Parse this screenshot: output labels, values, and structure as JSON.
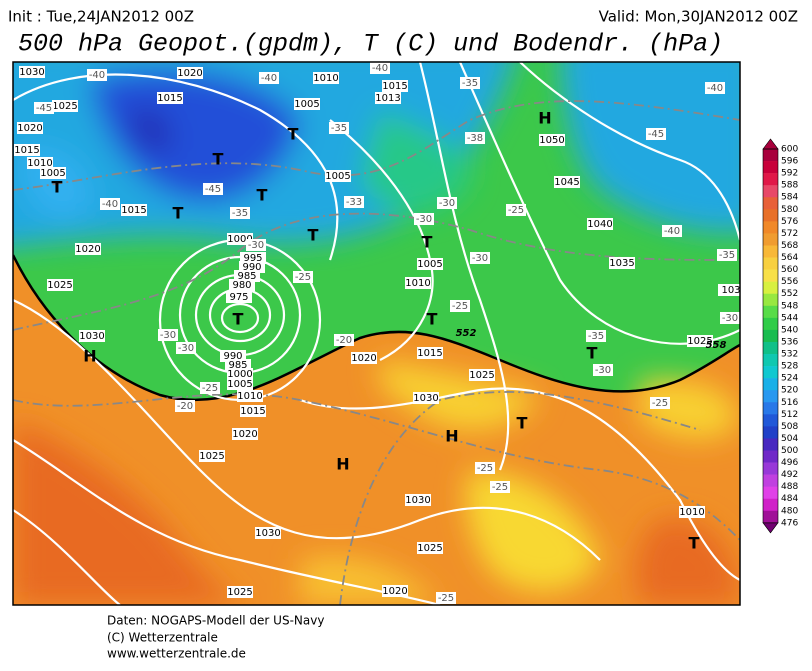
{
  "header": {
    "init": "Init : Tue,24JAN2012 00Z",
    "valid": "Valid: Mon,30JAN2012 00Z",
    "title": "500 hPa Geopot.(gpdm), T (C) und Bodendr. (hPa)"
  },
  "map": {
    "pressure_labels": [
      1030,
      1025,
      1020,
      1015,
      1010,
      1005,
      1015,
      1020,
      1025,
      1030,
      1020,
      1015,
      1010,
      1005,
      1015,
      1013,
      1050,
      1045,
      1040,
      1035,
      1005,
      1000,
      995,
      990,
      985,
      980,
      975,
      1005,
      1010,
      990,
      985,
      1000,
      1005,
      1010,
      1015,
      1020,
      1025,
      1030,
      1030,
      1025,
      1020,
      1025,
      1020,
      1015,
      1025,
      1030,
      1025,
      1010,
      103
    ],
    "temperature_labels": [
      -40,
      -40,
      -40,
      -35,
      -40,
      -45,
      -35,
      -38,
      -45,
      -40,
      -45,
      -35,
      -30,
      -33,
      -30,
      -30,
      -25,
      -40,
      -25,
      -30,
      -25,
      -20,
      -30,
      -30,
      -35,
      -30,
      -30,
      -25,
      -20,
      -25,
      -25,
      -25,
      -25,
      -35
    ],
    "highs": [
      "H",
      "H",
      "H",
      "H"
    ],
    "lows": [
      "T",
      "T",
      "T",
      "T",
      "T",
      "T",
      "T",
      "T",
      "T",
      "T",
      "T",
      "T"
    ],
    "contour_labels": [
      552,
      558
    ]
  },
  "colorbar": {
    "labels": [
      600,
      596,
      592,
      588,
      584,
      580,
      576,
      572,
      568,
      564,
      560,
      556,
      552,
      548,
      544,
      540,
      536,
      532,
      528,
      524,
      520,
      516,
      512,
      508,
      504,
      500,
      496,
      492,
      488,
      484,
      480,
      476
    ]
  },
  "footer": {
    "lines": [
      "Daten: NOGAPS-Modell der US-Navy",
      "(C) Wetterzentrale",
      "www.wetterzentrale.de"
    ]
  }
}
